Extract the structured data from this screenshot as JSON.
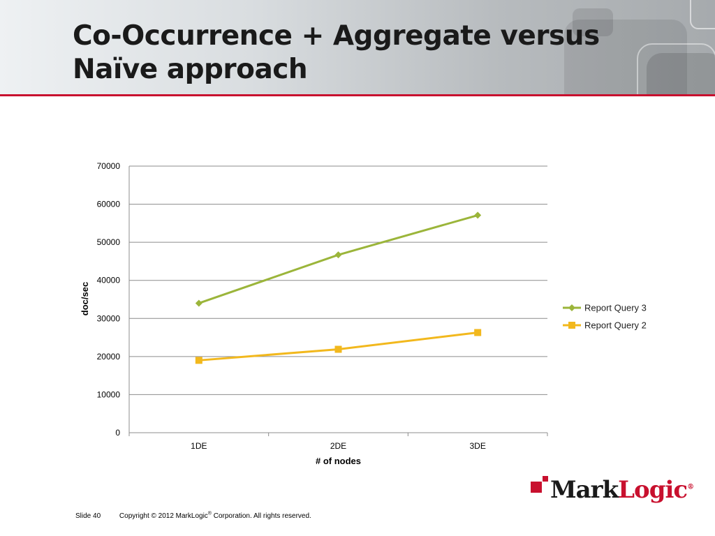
{
  "slide": {
    "title_line1": "Co-Occurrence + Aggregate versus",
    "title_line2": "Naïve approach",
    "footer_slide": "Slide 40",
    "footer_copyright_pre": "Copyright © 2012 MarkLogic",
    "footer_copyright_reg": "®",
    "footer_copyright_post": " Corporation. All rights reserved.",
    "logo_mark": "Mark",
    "logo_logic": "Logic",
    "logo_reg": "®"
  },
  "colors": {
    "accent_red": "#c8102e",
    "series_rq3": "#9bb53a",
    "series_rq2": "#f2b81d",
    "gridline": "#8c8c8c"
  },
  "chart_data": {
    "type": "line",
    "categories": [
      "1DE",
      "2DE",
      "3DE"
    ],
    "series": [
      {
        "name": "Report Query 3",
        "values": [
          34000,
          46700,
          57100
        ],
        "marker": "diamond",
        "color": "#9bb53a"
      },
      {
        "name": "Report Query 2",
        "values": [
          19000,
          21900,
          26300
        ],
        "marker": "square",
        "color": "#f2b81d"
      }
    ],
    "xlabel": "# of nodes",
    "ylabel": "doc/sec",
    "ylim": [
      0,
      70000
    ],
    "yticks": [
      0,
      10000,
      20000,
      30000,
      40000,
      50000,
      60000,
      70000
    ],
    "grid": true,
    "legend": "right"
  }
}
